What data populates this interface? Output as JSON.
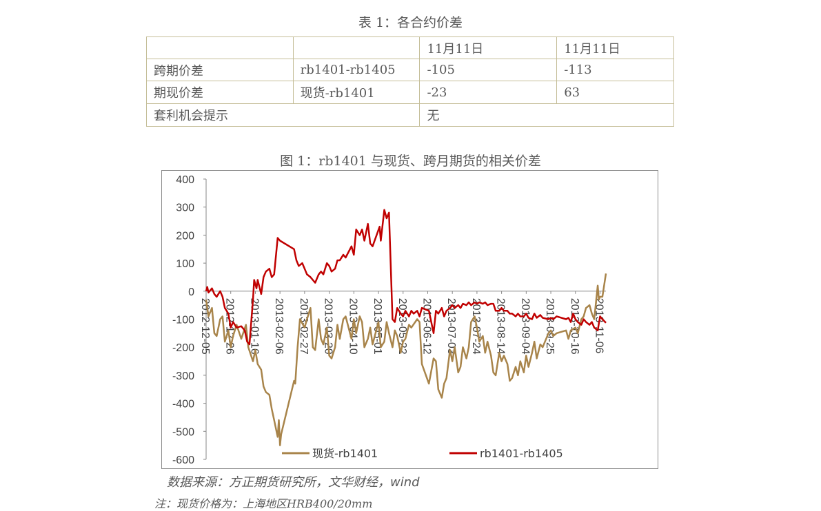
{
  "table_caption": "表 1：各合约价差",
  "table": {
    "header": [
      "",
      "",
      "11月11日",
      "11月11日"
    ],
    "rows": [
      {
        "label": "跨期价差",
        "contract": "rb1401-rb1405",
        "v1": "-105",
        "v2": "-113"
      },
      {
        "label": "期现价差",
        "contract": "现货-rb1401",
        "v1": "-23",
        "v2": "63"
      }
    ],
    "footer": {
      "label": "套利机会提示",
      "value": "无"
    }
  },
  "chart_caption": "图 1：rb1401 与现货、跨月期货的相关价差",
  "source": "数据来源：方正期货研究所，文华财经，wind",
  "note": "注：现货价格为：上海地区HRB400/20mm",
  "colors": {
    "spot": "#a8844a",
    "spread": "#c00000",
    "grid_border": "#8c8c8c",
    "table_border": "#c4bd97"
  },
  "chart_data": {
    "type": "line",
    "ylim": [
      -600,
      400
    ],
    "yticks": [
      400,
      300,
      200,
      100,
      0,
      -100,
      -200,
      -300,
      -400,
      -500,
      -600
    ],
    "xticks": [
      "2012-12-05",
      "2012-12-26",
      "2013-01-16",
      "2013-02-06",
      "2013-02-27",
      "2013-03-20",
      "2013-04-10",
      "2013-05-01",
      "2013-05-22",
      "2013-06-12",
      "2013-07-03",
      "2013-07-24",
      "2013-08-14",
      "2013-09-04",
      "2013-09-25",
      "2013-10-16",
      "2013-11-06"
    ],
    "x_start": "2012-12-05",
    "x_end": "2013-11-11",
    "legend": "bottom",
    "series": [
      {
        "name": "现货-rb1401",
        "color": "#a8844a",
        "points": [
          [
            "2012-12-05",
            -30
          ],
          [
            "2012-12-07",
            -90
          ],
          [
            "2012-12-10",
            -60
          ],
          [
            "2012-12-12",
            -150
          ],
          [
            "2012-12-14",
            -160
          ],
          [
            "2012-12-17",
            -100
          ],
          [
            "2012-12-19",
            -90
          ],
          [
            "2012-12-21",
            -180
          ],
          [
            "2012-12-24",
            -140
          ],
          [
            "2012-12-26",
            -200
          ],
          [
            "2012-12-28",
            -160
          ],
          [
            "2012-12-31",
            -120
          ],
          [
            "2013-01-04",
            -170
          ],
          [
            "2013-01-08",
            -120
          ],
          [
            "2013-01-10",
            -200
          ],
          [
            "2013-01-14",
            -250
          ],
          [
            "2013-01-16",
            -210
          ],
          [
            "2013-01-18",
            -260
          ],
          [
            "2013-01-21",
            -280
          ],
          [
            "2013-01-23",
            -340
          ],
          [
            "2013-01-25",
            -360
          ],
          [
            "2013-01-28",
            -370
          ],
          [
            "2013-01-30",
            -420
          ],
          [
            "2013-02-01",
            -460
          ],
          [
            "2013-02-04",
            -520
          ],
          [
            "2013-02-05",
            -460
          ],
          [
            "2013-02-06",
            -550
          ],
          [
            "2013-02-07",
            -510
          ],
          [
            "2013-02-18",
            -320
          ],
          [
            "2013-02-19",
            -330
          ],
          [
            "2013-02-21",
            -200
          ],
          [
            "2013-02-23",
            -100
          ],
          [
            "2013-02-27",
            -130
          ],
          [
            "2013-03-01",
            -100
          ],
          [
            "2013-03-04",
            -60
          ],
          [
            "2013-03-06",
            -200
          ],
          [
            "2013-03-08",
            -210
          ],
          [
            "2013-03-11",
            -100
          ],
          [
            "2013-03-13",
            -170
          ],
          [
            "2013-03-15",
            -190
          ],
          [
            "2013-03-18",
            -130
          ],
          [
            "2013-03-20",
            -230
          ],
          [
            "2013-03-22",
            -240
          ],
          [
            "2013-03-25",
            -200
          ],
          [
            "2013-03-27",
            -120
          ],
          [
            "2013-03-29",
            -170
          ],
          [
            "2013-04-01",
            -100
          ],
          [
            "2013-04-03",
            -90
          ],
          [
            "2013-04-08",
            -170
          ],
          [
            "2013-04-10",
            -100
          ],
          [
            "2013-04-12",
            -150
          ],
          [
            "2013-04-15",
            -90
          ],
          [
            "2013-04-17",
            -110
          ],
          [
            "2013-04-19",
            -200
          ],
          [
            "2013-04-22",
            -170
          ],
          [
            "2013-04-24",
            -130
          ],
          [
            "2013-04-26",
            -190
          ],
          [
            "2013-05-01",
            -110
          ],
          [
            "2013-05-03",
            -200
          ],
          [
            "2013-05-06",
            -180
          ],
          [
            "2013-05-08",
            -110
          ],
          [
            "2013-05-10",
            -150
          ],
          [
            "2013-05-13",
            -200
          ],
          [
            "2013-05-15",
            -140
          ],
          [
            "2013-05-17",
            -160
          ],
          [
            "2013-05-20",
            -220
          ],
          [
            "2013-05-22",
            -180
          ],
          [
            "2013-05-24",
            -170
          ],
          [
            "2013-05-27",
            -120
          ],
          [
            "2013-05-29",
            -130
          ],
          [
            "2013-06-03",
            -100
          ],
          [
            "2013-06-05",
            -110
          ],
          [
            "2013-06-07",
            -260
          ],
          [
            "2013-06-13",
            -330
          ],
          [
            "2013-06-17",
            -240
          ],
          [
            "2013-06-19",
            -250
          ],
          [
            "2013-06-21",
            -350
          ],
          [
            "2013-06-24",
            -380
          ],
          [
            "2013-06-26",
            -330
          ],
          [
            "2013-06-28",
            -310
          ],
          [
            "2013-07-01",
            -210
          ],
          [
            "2013-07-03",
            -250
          ],
          [
            "2013-07-05",
            -200
          ],
          [
            "2013-07-08",
            -290
          ],
          [
            "2013-07-10",
            -270
          ],
          [
            "2013-07-12",
            -200
          ],
          [
            "2013-07-15",
            -240
          ],
          [
            "2013-07-17",
            -200
          ],
          [
            "2013-07-19",
            -110
          ],
          [
            "2013-07-22",
            -90
          ],
          [
            "2013-07-24",
            -130
          ],
          [
            "2013-07-26",
            -180
          ],
          [
            "2013-07-29",
            -160
          ],
          [
            "2013-07-31",
            -220
          ],
          [
            "2013-08-02",
            -180
          ],
          [
            "2013-08-05",
            -230
          ],
          [
            "2013-08-07",
            -290
          ],
          [
            "2013-08-09",
            -300
          ],
          [
            "2013-08-12",
            -220
          ],
          [
            "2013-08-14",
            -250
          ],
          [
            "2013-08-16",
            -230
          ],
          [
            "2013-08-19",
            -260
          ],
          [
            "2013-08-21",
            -320
          ],
          [
            "2013-08-23",
            -310
          ],
          [
            "2013-08-26",
            -270
          ],
          [
            "2013-08-28",
            -300
          ],
          [
            "2013-08-30",
            -250
          ],
          [
            "2013-09-02",
            -290
          ],
          [
            "2013-09-04",
            -230
          ],
          [
            "2013-09-06",
            -270
          ],
          [
            "2013-09-09",
            -220
          ],
          [
            "2013-09-11",
            -180
          ],
          [
            "2013-09-13",
            -240
          ],
          [
            "2013-09-16",
            -190
          ],
          [
            "2013-09-18",
            -200
          ],
          [
            "2013-09-23",
            -150
          ],
          [
            "2013-09-25",
            -140
          ],
          [
            "2013-09-27",
            -160
          ],
          [
            "2013-09-30",
            -150
          ],
          [
            "2013-10-08",
            -140
          ],
          [
            "2013-10-10",
            -170
          ],
          [
            "2013-10-12",
            -140
          ],
          [
            "2013-10-16",
            -130
          ],
          [
            "2013-10-18",
            -150
          ],
          [
            "2013-10-21",
            -100
          ],
          [
            "2013-10-23",
            -90
          ],
          [
            "2013-10-25",
            -60
          ],
          [
            "2013-10-28",
            -50
          ],
          [
            "2013-10-30",
            -80
          ],
          [
            "2013-11-01",
            -100
          ],
          [
            "2013-11-04",
            20
          ],
          [
            "2013-11-05",
            -30
          ],
          [
            "2013-11-06",
            -20
          ],
          [
            "2013-11-08",
            -20
          ],
          [
            "2013-11-11",
            63
          ]
        ]
      },
      {
        "name": "rb1401-rb1405",
        "color": "#c00000",
        "points": [
          [
            "2012-12-05",
            0
          ],
          [
            "2012-12-06",
            15
          ],
          [
            "2012-12-07",
            -5
          ],
          [
            "2012-12-10",
            10
          ],
          [
            "2012-12-12",
            -10
          ],
          [
            "2012-12-14",
            -20
          ],
          [
            "2012-12-17",
            0
          ],
          [
            "2012-12-19",
            -20
          ],
          [
            "2012-12-21",
            -60
          ],
          [
            "2012-12-24",
            -80
          ],
          [
            "2012-12-26",
            -130
          ],
          [
            "2012-12-28",
            -110
          ],
          [
            "2012-12-31",
            -130
          ],
          [
            "2013-01-04",
            -125
          ],
          [
            "2013-01-07",
            -140
          ],
          [
            "2013-01-09",
            -180
          ],
          [
            "2013-01-11",
            -190
          ],
          [
            "2013-01-14",
            -30
          ],
          [
            "2013-01-15",
            40
          ],
          [
            "2013-01-17",
            10
          ],
          [
            "2013-01-18",
            40
          ],
          [
            "2013-01-21",
            -10
          ],
          [
            "2013-01-23",
            50
          ],
          [
            "2013-01-25",
            70
          ],
          [
            "2013-01-28",
            80
          ],
          [
            "2013-01-30",
            50
          ],
          [
            "2013-02-01",
            60
          ],
          [
            "2013-02-04",
            190
          ],
          [
            "2013-02-06",
            180
          ],
          [
            "2013-02-18",
            150
          ],
          [
            "2013-02-20",
            110
          ],
          [
            "2013-02-22",
            90
          ],
          [
            "2013-02-25",
            100
          ],
          [
            "2013-02-27",
            80
          ],
          [
            "2013-03-01",
            60
          ],
          [
            "2013-03-04",
            50
          ],
          [
            "2013-03-06",
            40
          ],
          [
            "2013-03-08",
            30
          ],
          [
            "2013-03-11",
            60
          ],
          [
            "2013-03-13",
            70
          ],
          [
            "2013-03-15",
            60
          ],
          [
            "2013-03-18",
            100
          ],
          [
            "2013-03-20",
            90
          ],
          [
            "2013-03-22",
            70
          ],
          [
            "2013-03-25",
            80
          ],
          [
            "2013-03-27",
            110
          ],
          [
            "2013-03-29",
            110
          ],
          [
            "2013-04-01",
            130
          ],
          [
            "2013-04-03",
            120
          ],
          [
            "2013-04-08",
            160
          ],
          [
            "2013-04-10",
            130
          ],
          [
            "2013-04-12",
            220
          ],
          [
            "2013-04-15",
            200
          ],
          [
            "2013-04-17",
            220
          ],
          [
            "2013-04-19",
            180
          ],
          [
            "2013-04-22",
            240
          ],
          [
            "2013-04-24",
            170
          ],
          [
            "2013-04-26",
            160
          ],
          [
            "2013-05-02",
            230
          ],
          [
            "2013-05-03",
            180
          ],
          [
            "2013-05-06",
            290
          ],
          [
            "2013-05-08",
            260
          ],
          [
            "2013-05-10",
            280
          ],
          [
            "2013-05-13",
            -100
          ],
          [
            "2013-05-15",
            -110
          ],
          [
            "2013-05-17",
            -60
          ],
          [
            "2013-05-20",
            -80
          ],
          [
            "2013-05-22",
            -90
          ],
          [
            "2013-05-24",
            -70
          ],
          [
            "2013-05-27",
            -90
          ],
          [
            "2013-05-29",
            -70
          ],
          [
            "2013-05-31",
            -80
          ],
          [
            "2013-06-03",
            -70
          ],
          [
            "2013-06-05",
            -90
          ],
          [
            "2013-06-07",
            -60
          ],
          [
            "2013-06-13",
            -70
          ],
          [
            "2013-06-17",
            -150
          ],
          [
            "2013-06-19",
            -70
          ],
          [
            "2013-06-21",
            -80
          ],
          [
            "2013-06-24",
            -60
          ],
          [
            "2013-06-26",
            -90
          ],
          [
            "2013-06-28",
            -70
          ],
          [
            "2013-07-01",
            -60
          ],
          [
            "2013-07-03",
            -50
          ],
          [
            "2013-07-05",
            -60
          ],
          [
            "2013-07-08",
            -50
          ],
          [
            "2013-07-10",
            -60
          ],
          [
            "2013-07-12",
            -45
          ],
          [
            "2013-07-15",
            -50
          ],
          [
            "2013-07-17",
            -40
          ],
          [
            "2013-07-19",
            -50
          ],
          [
            "2013-07-22",
            -40
          ],
          [
            "2013-07-24",
            -45
          ],
          [
            "2013-07-26",
            -40
          ],
          [
            "2013-07-29",
            -45
          ],
          [
            "2013-07-31",
            -40
          ],
          [
            "2013-08-02",
            -50
          ],
          [
            "2013-08-05",
            -45
          ],
          [
            "2013-08-07",
            -45
          ],
          [
            "2013-08-09",
            -70
          ],
          [
            "2013-08-12",
            -70
          ],
          [
            "2013-08-14",
            -60
          ],
          [
            "2013-08-16",
            -70
          ],
          [
            "2013-08-19",
            -70
          ],
          [
            "2013-08-21",
            -80
          ],
          [
            "2013-08-23",
            -80
          ],
          [
            "2013-08-26",
            -90
          ],
          [
            "2013-08-28",
            -80
          ],
          [
            "2013-08-30",
            -90
          ],
          [
            "2013-09-02",
            -90
          ],
          [
            "2013-09-04",
            -80
          ],
          [
            "2013-09-06",
            -95
          ],
          [
            "2013-09-09",
            -100
          ],
          [
            "2013-09-11",
            -80
          ],
          [
            "2013-09-13",
            -95
          ],
          [
            "2013-09-16",
            -85
          ],
          [
            "2013-09-18",
            -95
          ],
          [
            "2013-09-23",
            -100
          ],
          [
            "2013-09-25",
            -95
          ],
          [
            "2013-09-27",
            -100
          ],
          [
            "2013-09-30",
            -90
          ],
          [
            "2013-10-08",
            -100
          ],
          [
            "2013-10-10",
            -95
          ],
          [
            "2013-10-12",
            -110
          ],
          [
            "2013-10-14",
            -80
          ],
          [
            "2013-10-16",
            -100
          ],
          [
            "2013-10-18",
            -110
          ],
          [
            "2013-10-21",
            -120
          ],
          [
            "2013-10-23",
            -100
          ],
          [
            "2013-10-25",
            -110
          ],
          [
            "2013-10-28",
            -120
          ],
          [
            "2013-10-30",
            -110
          ],
          [
            "2013-11-01",
            -130
          ],
          [
            "2013-11-04",
            -140
          ],
          [
            "2013-11-06",
            -90
          ],
          [
            "2013-11-08",
            -100
          ],
          [
            "2013-11-11",
            -113
          ]
        ]
      }
    ]
  }
}
